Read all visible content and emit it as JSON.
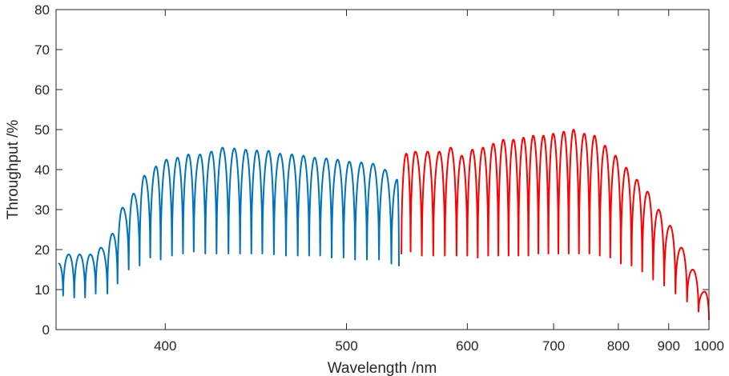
{
  "chart_data": {
    "type": "line",
    "title": "",
    "xlabel": "Wavelength  /nm",
    "ylabel": "Throughput  /%",
    "xscale": "reciprocal",
    "xlim": [
      357,
      1000
    ],
    "ylim": [
      0,
      80
    ],
    "xticks": [
      400,
      500,
      600,
      700,
      800,
      900,
      1000
    ],
    "yticks": [
      0,
      10,
      20,
      30,
      40,
      50,
      60,
      70,
      80
    ],
    "grid": false,
    "legend": "none",
    "series": [
      {
        "color": "#0072BD",
        "peaks": [
          {
            "x": 358,
            "y": 16.5
          },
          {
            "x": 361.5,
            "y": 18.8
          },
          {
            "x": 365.5,
            "y": 18.8
          },
          {
            "x": 369.5,
            "y": 18.8
          },
          {
            "x": 373.5,
            "y": 20.5
          },
          {
            "x": 378,
            "y": 24
          },
          {
            "x": 382,
            "y": 30.5
          },
          {
            "x": 386.5,
            "y": 34
          },
          {
            "x": 391,
            "y": 38.5
          },
          {
            "x": 396,
            "y": 40.8
          },
          {
            "x": 400.5,
            "y": 42.5
          },
          {
            "x": 405.5,
            "y": 43
          },
          {
            "x": 410.5,
            "y": 43.8
          },
          {
            "x": 416,
            "y": 43.8
          },
          {
            "x": 421.5,
            "y": 44.5
          },
          {
            "x": 427,
            "y": 45.5
          },
          {
            "x": 433,
            "y": 45.3
          },
          {
            "x": 439,
            "y": 45
          },
          {
            "x": 445,
            "y": 44.8
          },
          {
            "x": 451.5,
            "y": 44.7
          },
          {
            "x": 458,
            "y": 44
          },
          {
            "x": 465,
            "y": 43.8
          },
          {
            "x": 472,
            "y": 43.5
          },
          {
            "x": 479,
            "y": 43
          },
          {
            "x": 486.5,
            "y": 42.8
          },
          {
            "x": 494,
            "y": 42.5
          },
          {
            "x": 502,
            "y": 42
          },
          {
            "x": 510.5,
            "y": 41.8
          },
          {
            "x": 519,
            "y": 41.5
          },
          {
            "x": 528,
            "y": 40
          },
          {
            "x": 537.5,
            "y": 37.5
          }
        ],
        "troughs": [
          {
            "x": 359.5,
            "y": 8.5
          },
          {
            "x": 363.5,
            "y": 8
          },
          {
            "x": 367.5,
            "y": 8
          },
          {
            "x": 371.5,
            "y": 9
          },
          {
            "x": 376,
            "y": 9
          },
          {
            "x": 380,
            "y": 11.5
          },
          {
            "x": 384.5,
            "y": 15
          },
          {
            "x": 389,
            "y": 16
          },
          {
            "x": 393.5,
            "y": 18
          },
          {
            "x": 398,
            "y": 17.5
          },
          {
            "x": 403,
            "y": 18.5
          },
          {
            "x": 408,
            "y": 19
          },
          {
            "x": 413,
            "y": 19.5
          },
          {
            "x": 418.5,
            "y": 19
          },
          {
            "x": 424,
            "y": 19
          },
          {
            "x": 430,
            "y": 19
          },
          {
            "x": 436,
            "y": 19
          },
          {
            "x": 442,
            "y": 19
          },
          {
            "x": 448,
            "y": 19
          },
          {
            "x": 454.5,
            "y": 18.8
          },
          {
            "x": 461.5,
            "y": 18.5
          },
          {
            "x": 468.5,
            "y": 18.5
          },
          {
            "x": 475.5,
            "y": 18.5
          },
          {
            "x": 482.5,
            "y": 18.5
          },
          {
            "x": 490,
            "y": 18
          },
          {
            "x": 498,
            "y": 18
          },
          {
            "x": 506,
            "y": 17.5
          },
          {
            "x": 514.5,
            "y": 17.5
          },
          {
            "x": 523.5,
            "y": 17.5
          },
          {
            "x": 533,
            "y": 16.5
          },
          {
            "x": 539,
            "y": 16
          }
        ]
      },
      {
        "color": "#FF0000",
        "peaks": [
          {
            "x": 545,
            "y": 44
          },
          {
            "x": 552.5,
            "y": 44.5
          },
          {
            "x": 563,
            "y": 44.5
          },
          {
            "x": 573.5,
            "y": 44.5
          },
          {
            "x": 584,
            "y": 45.5
          },
          {
            "x": 594.5,
            "y": 43.5
          },
          {
            "x": 605,
            "y": 45
          },
          {
            "x": 616,
            "y": 45.5
          },
          {
            "x": 627,
            "y": 46.5
          },
          {
            "x": 638,
            "y": 47.5
          },
          {
            "x": 649.5,
            "y": 47.5
          },
          {
            "x": 661.5,
            "y": 48
          },
          {
            "x": 673.5,
            "y": 48.5
          },
          {
            "x": 686.5,
            "y": 48.5
          },
          {
            "x": 699.5,
            "y": 49
          },
          {
            "x": 714,
            "y": 49.5
          },
          {
            "x": 728,
            "y": 50
          },
          {
            "x": 744,
            "y": 49
          },
          {
            "x": 760,
            "y": 48.5
          },
          {
            "x": 777,
            "y": 46
          },
          {
            "x": 795,
            "y": 43.5
          },
          {
            "x": 814,
            "y": 40.5
          },
          {
            "x": 834,
            "y": 37.5
          },
          {
            "x": 855,
            "y": 34.5
          },
          {
            "x": 878,
            "y": 30
          },
          {
            "x": 903,
            "y": 26
          },
          {
            "x": 929,
            "y": 20.5
          },
          {
            "x": 957,
            "y": 15
          },
          {
            "x": 988,
            "y": 9.5
          }
        ],
        "troughs": [
          {
            "x": 541,
            "y": 19
          },
          {
            "x": 548.5,
            "y": 19.5
          },
          {
            "x": 558,
            "y": 18.5
          },
          {
            "x": 568,
            "y": 18.5
          },
          {
            "x": 578.5,
            "y": 18.5
          },
          {
            "x": 589.5,
            "y": 18.5
          },
          {
            "x": 600,
            "y": 18.5
          },
          {
            "x": 610.5,
            "y": 18
          },
          {
            "x": 621.5,
            "y": 18.5
          },
          {
            "x": 632.5,
            "y": 18.5
          },
          {
            "x": 644,
            "y": 18.5
          },
          {
            "x": 655.5,
            "y": 18.5
          },
          {
            "x": 667.5,
            "y": 18.5
          },
          {
            "x": 680,
            "y": 19
          },
          {
            "x": 693,
            "y": 19
          },
          {
            "x": 706.5,
            "y": 19
          },
          {
            "x": 721,
            "y": 19
          },
          {
            "x": 736,
            "y": 19
          },
          {
            "x": 752,
            "y": 19
          },
          {
            "x": 768.5,
            "y": 18.5
          },
          {
            "x": 786,
            "y": 18
          },
          {
            "x": 804.5,
            "y": 16.5
          },
          {
            "x": 824,
            "y": 16
          },
          {
            "x": 844.5,
            "y": 14.5
          },
          {
            "x": 866.5,
            "y": 12.5
          },
          {
            "x": 890,
            "y": 11
          },
          {
            "x": 915.5,
            "y": 9
          },
          {
            "x": 943,
            "y": 7
          },
          {
            "x": 972,
            "y": 4.5
          },
          {
            "x": 1000,
            "y": 2.5
          }
        ]
      }
    ]
  }
}
